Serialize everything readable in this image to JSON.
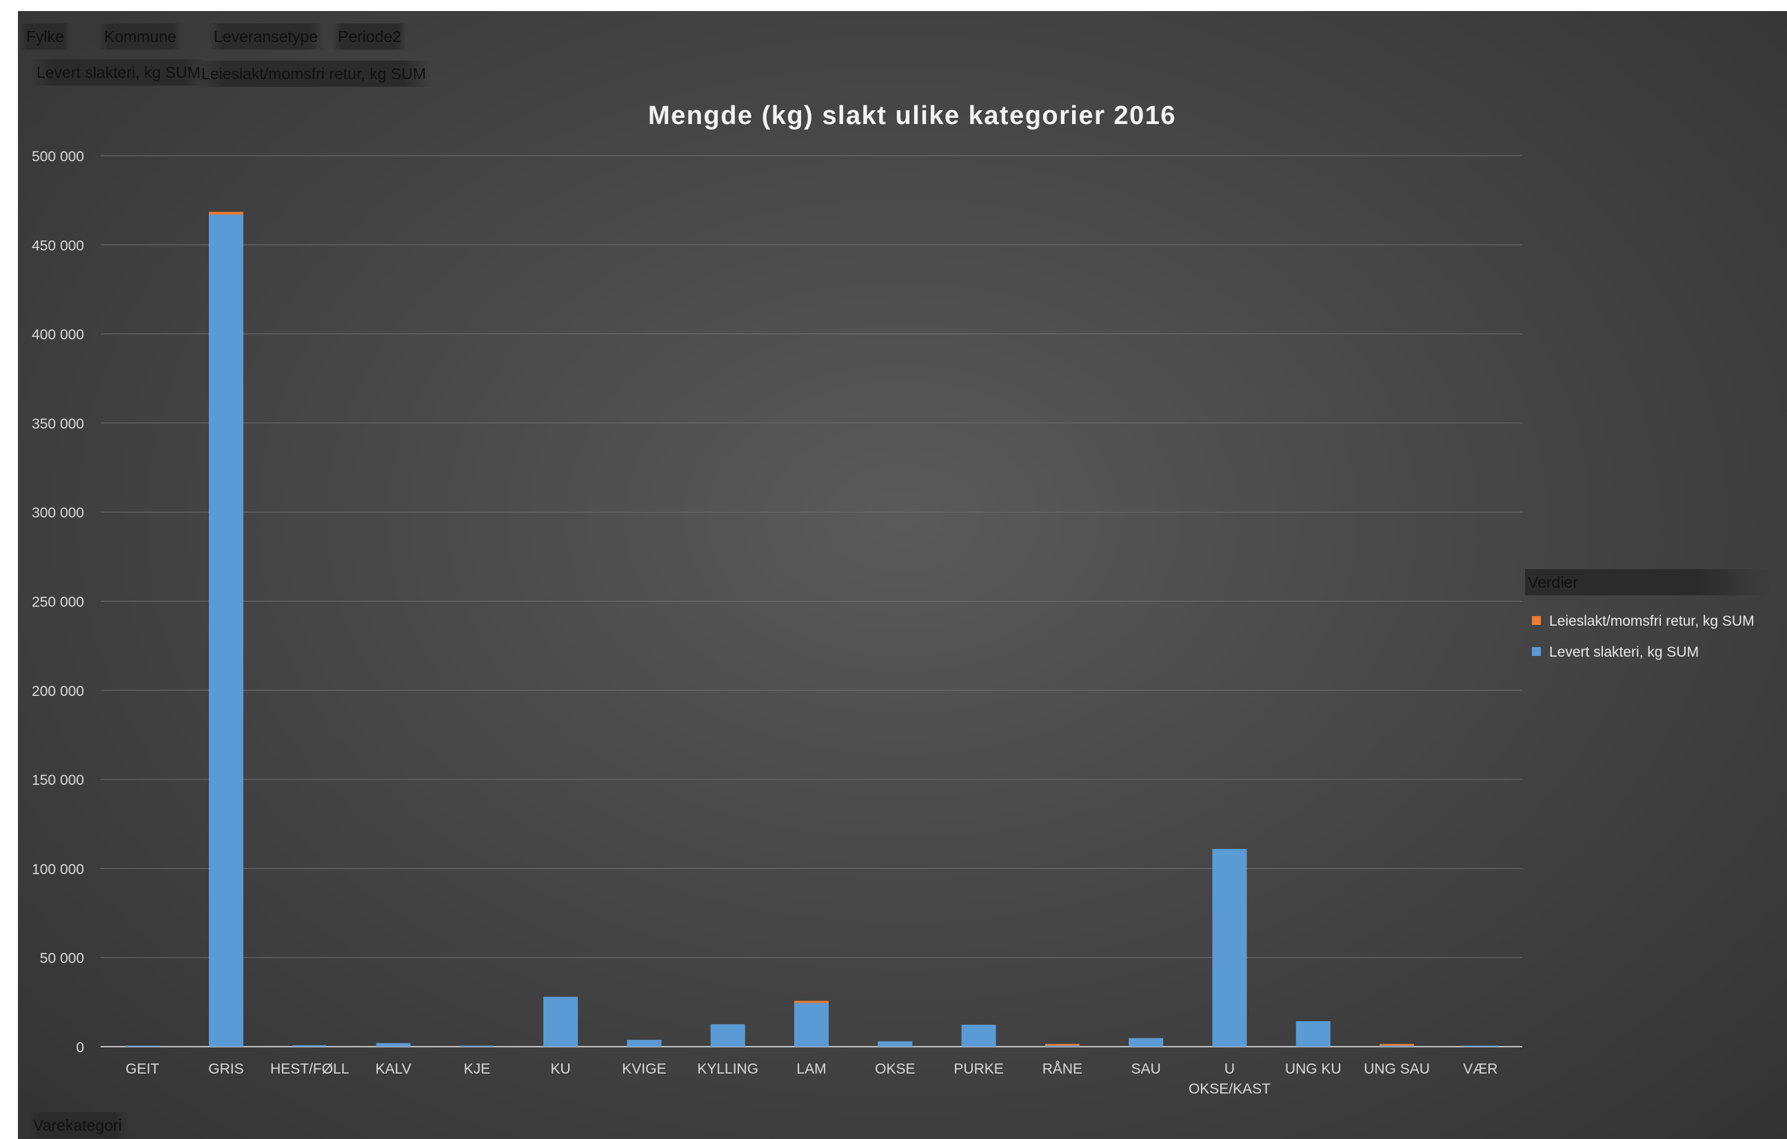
{
  "filters": {
    "report_fields": [
      "Fylke",
      "Kommune",
      "Leveransetype",
      "Periode2"
    ],
    "value_fields": [
      "Levert slakteri, kg SUM",
      "Leieslakt/momsfri retur, kg SUM"
    ],
    "axis_field": "Varekategori"
  },
  "legend": {
    "title": "Verdier",
    "items": [
      {
        "label": "Leieslakt/momsfri retur, kg SUM",
        "color": "#ed7d31"
      },
      {
        "label": "Levert slakteri, kg SUM",
        "color": "#5b9bd5"
      }
    ]
  },
  "chart_data": {
    "type": "bar",
    "stacked": true,
    "title": "Mengde (kg) slakt ulike kategorier 2016",
    "xlabel": "",
    "ylabel": "",
    "ylim": [
      0,
      500000
    ],
    "yticks": [
      "0",
      "50 000",
      "100 000",
      "150 000",
      "200 000",
      "250 000",
      "300 000",
      "350 000",
      "400 000",
      "450 000",
      "500 000"
    ],
    "categories": [
      "GEIT",
      "GRIS",
      "HEST/FØLL",
      "KALV",
      "KJE",
      "KU",
      "KVIGE",
      "KYLLING",
      "LAM",
      "OKSE",
      "PURKE",
      "RÅNE",
      "SAU",
      "U OKSE/KAST",
      "UNG KU",
      "UNG SAU",
      "VÆR"
    ],
    "series": [
      {
        "name": "Levert slakteri, kg SUM",
        "color": "#5b9bd5",
        "values": [
          500,
          467000,
          800,
          2000,
          300,
          28000,
          3800,
          12600,
          24500,
          3000,
          12300,
          200,
          4800,
          111000,
          14300,
          300,
          500
        ]
      },
      {
        "name": "Leieslakt/momsfri retur, kg SUM",
        "color": "#ed7d31",
        "values": [
          0,
          1500,
          0,
          0,
          0,
          0,
          0,
          0,
          1200,
          0,
          0,
          800,
          0,
          0,
          0,
          800,
          0
        ]
      }
    ],
    "grid": true,
    "legend_position": "right"
  }
}
